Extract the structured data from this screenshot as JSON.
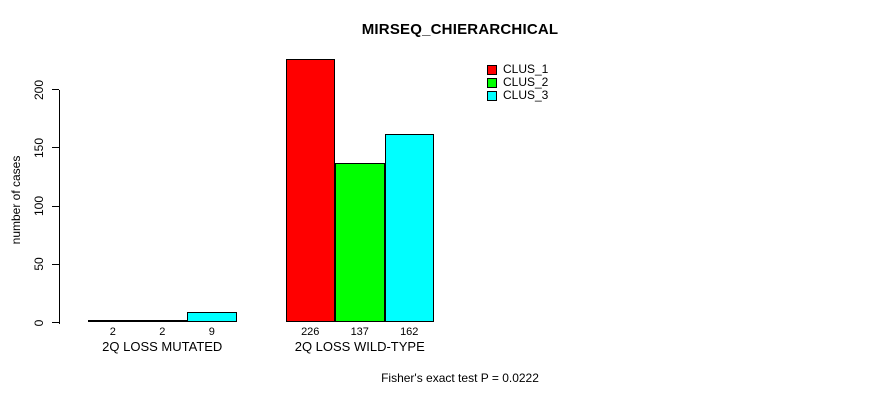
{
  "chart_data": {
    "type": "bar",
    "title": "MIRSEQ_CHIERARCHICAL",
    "xlabel": "",
    "ylabel": "number of cases",
    "categories": [
      "2Q LOSS MUTATED",
      "2Q LOSS WILD-TYPE"
    ],
    "series": [
      {
        "name": "CLUS_1",
        "color": "#ff0000",
        "values": [
          2,
          226
        ]
      },
      {
        "name": "CLUS_2",
        "color": "#00ff00",
        "values": [
          2,
          137
        ]
      },
      {
        "name": "CLUS_3",
        "color": "#00ffff",
        "values": [
          9,
          162
        ]
      }
    ],
    "bar_value_labels": [
      [
        "2",
        "2",
        "9"
      ],
      [
        "226",
        "137",
        "162"
      ]
    ],
    "yticks": [
      0,
      50,
      100,
      150,
      200
    ],
    "ylim": [
      0,
      230
    ],
    "grid": false,
    "legend_position": "top-right",
    "annotation": "Fisher's exact test P = 0.0222"
  },
  "colors": {
    "axis": "#000000",
    "text": "#000000",
    "background": "#ffffff"
  }
}
